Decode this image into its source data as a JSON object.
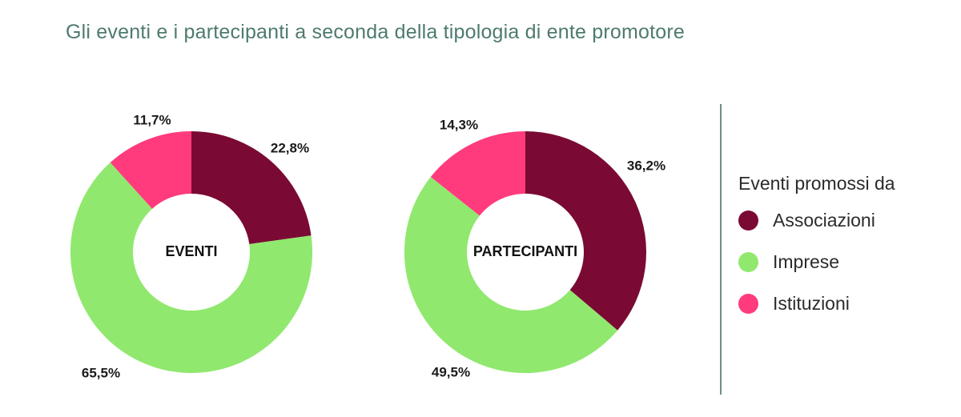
{
  "title": "Gli eventi e i partecipanti a seconda della tipologia di ente promotore",
  "colors": {
    "Associazioni": "#7a0a33",
    "Imprese": "#90e86e",
    "Istituzioni": "#ff3b7e"
  },
  "legend": {
    "title": "Eventi promossi da",
    "items": [
      "Associazioni",
      "Imprese",
      "Istituzioni"
    ]
  },
  "chart_data": [
    {
      "type": "pie",
      "center_label": "EVENTI",
      "slices": [
        {
          "label": "Associazioni",
          "value": 22.8,
          "display": "22,8%"
        },
        {
          "label": "Imprese",
          "value": 65.5,
          "display": "65,5%"
        },
        {
          "label": "Istituzioni",
          "value": 11.7,
          "display": "11,7%"
        }
      ]
    },
    {
      "type": "pie",
      "center_label": "PARTECIPANTI",
      "slices": [
        {
          "label": "Associazioni",
          "value": 36.2,
          "display": "36,2%"
        },
        {
          "label": "Imprese",
          "value": 49.5,
          "display": "49,5%"
        },
        {
          "label": "Istituzioni",
          "value": 14.3,
          "display": "14,3%"
        }
      ]
    }
  ]
}
